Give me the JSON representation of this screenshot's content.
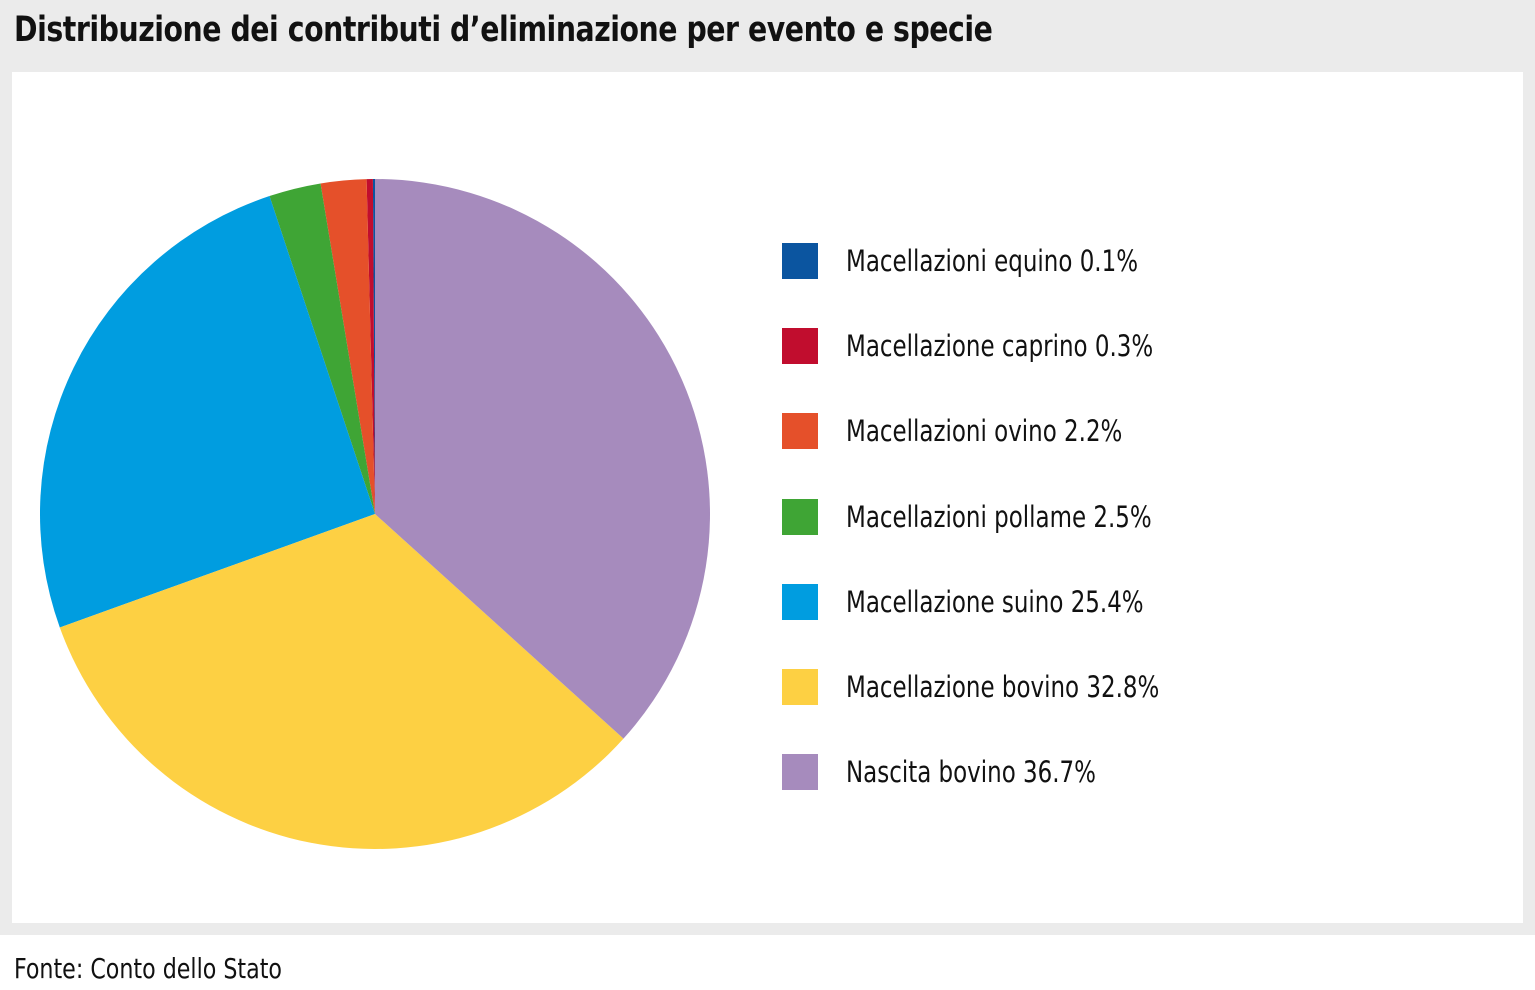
{
  "title": "Distribuzione dei contributi d’eliminazione per evento e specie",
  "source": "Fonte: Conto dello Stato",
  "chart_data": {
    "type": "pie",
    "title": "Distribuzione dei contributi d’eliminazione per evento e specie",
    "unit": "%",
    "start": "12 o'clock",
    "direction": "counterclockwise",
    "slices": [
      {
        "label": "Macellazioni equino 0.1%",
        "name": "Macellazioni equino",
        "value": 0.1,
        "color": "#0b55a0"
      },
      {
        "label": "Macellazione caprino 0.3%",
        "name": "Macellazione caprino",
        "value": 0.3,
        "color": "#c10d2e"
      },
      {
        "label": "Macellazioni ovino 2.2%",
        "name": "Macellazioni ovino",
        "value": 2.2,
        "color": "#e5502a"
      },
      {
        "label": "Macellazioni pollame 2.5%",
        "name": "Macellazioni pollame",
        "value": 2.5,
        "color": "#3fa535"
      },
      {
        "label": "Macellazione suino 25.4%",
        "name": "Macellazione suino",
        "value": 25.4,
        "color": "#009de0"
      },
      {
        "label": "Macellazione bovino 32.8%",
        "name": "Macellazione bovino",
        "value": 32.8,
        "color": "#fdd043"
      },
      {
        "label": "Nascita bovino 36.7%",
        "name": "Nascita bovino",
        "value": 36.7,
        "color": "#a68bbd"
      }
    ]
  }
}
